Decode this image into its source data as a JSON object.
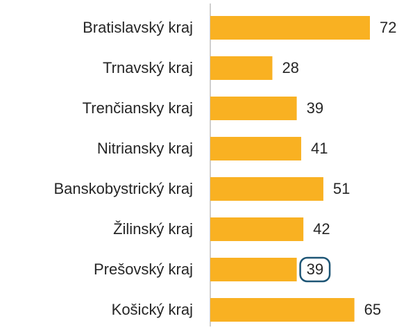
{
  "chart_data": {
    "type": "bar",
    "orientation": "horizontal",
    "categories": [
      "Bratislavský kraj",
      "Trnavský kraj",
      "Trenčiansky kraj",
      "Nitriansky kraj",
      "Banskobystrický kraj",
      "Žilinský kraj",
      "Prešovský kraj",
      "Košický kraj"
    ],
    "values": [
      72,
      28,
      39,
      41,
      51,
      42,
      39,
      65
    ],
    "color": "#f9b122",
    "highlight_index": 6,
    "highlight_color": "#1d5575"
  }
}
